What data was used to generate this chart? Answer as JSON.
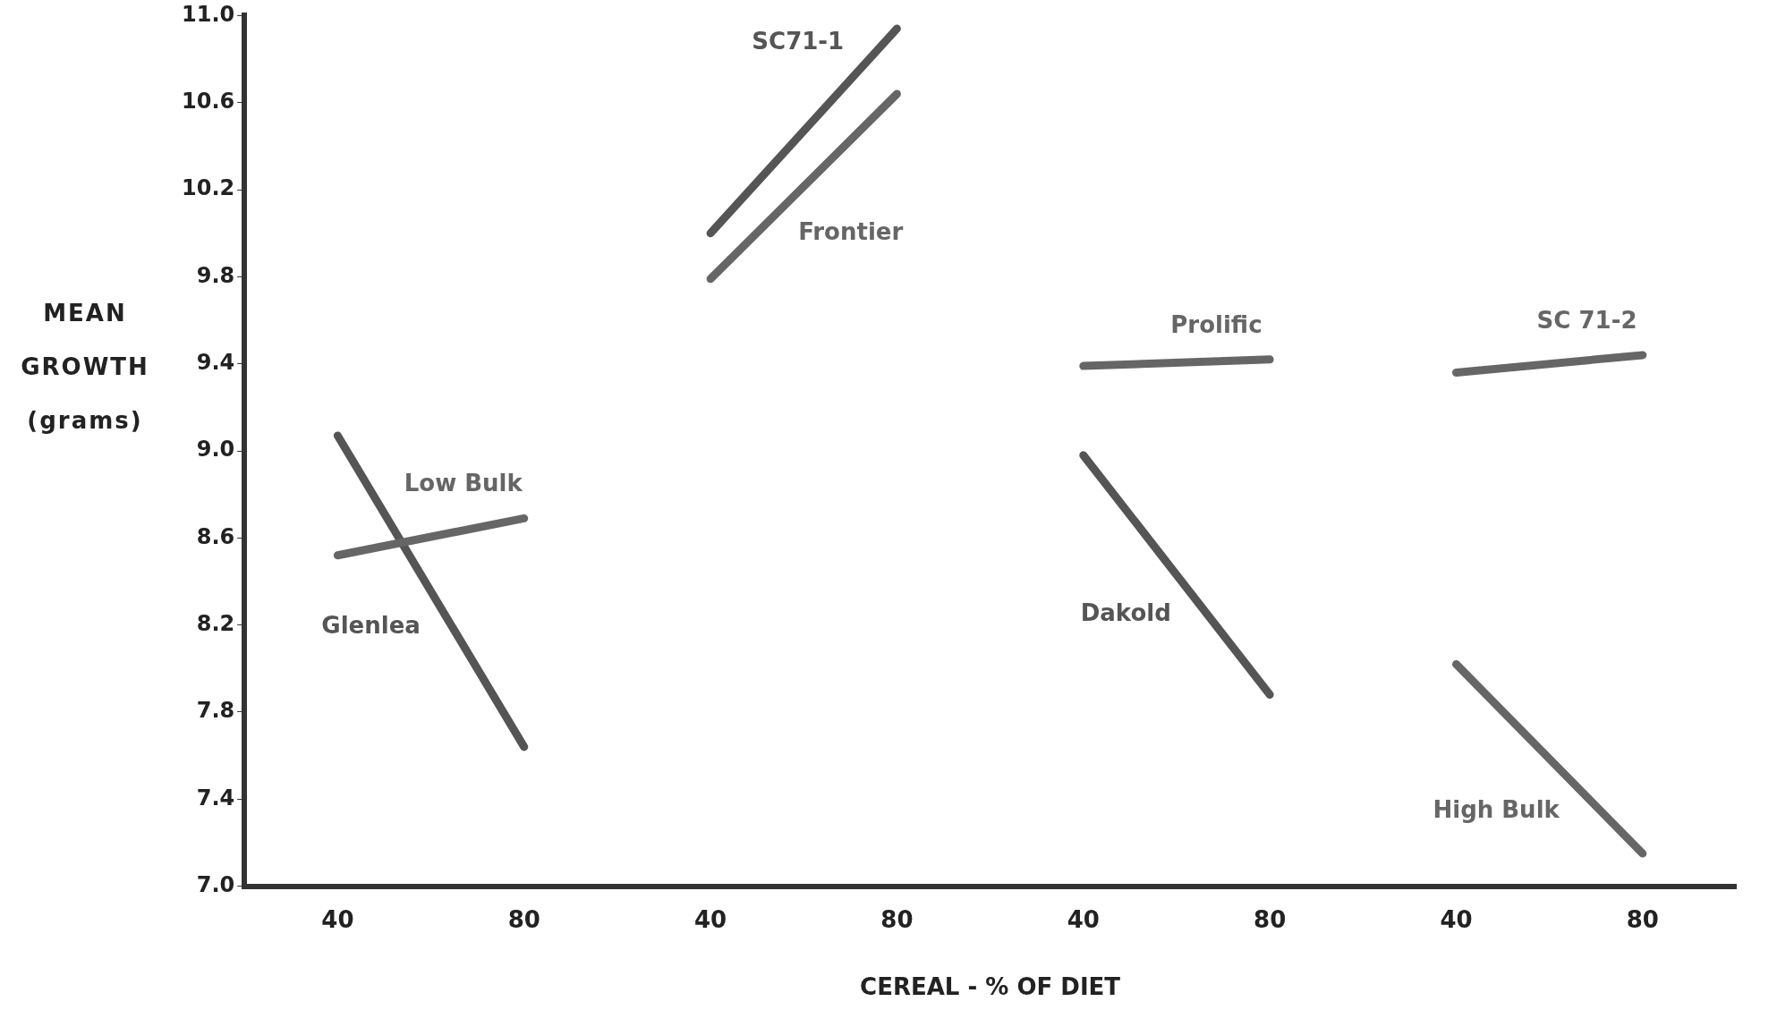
{
  "chart_data": {
    "type": "line",
    "xlabel": "CEREAL - % OF DIET",
    "ylabel": "MEAN GROWTH (grams)",
    "categories": [
      "40",
      "80",
      "40",
      "80",
      "40",
      "80",
      "40",
      "80"
    ],
    "ylim": [
      7.0,
      11.0
    ],
    "yticks": [
      {
        "value": 7.0,
        "label": "7.0"
      },
      {
        "value": 7.4,
        "label": "7.4"
      },
      {
        "value": 7.8,
        "label": "7.8"
      },
      {
        "value": 8.2,
        "label": "8.2"
      },
      {
        "value": 8.6,
        "label": "8.6"
      },
      {
        "value": 9.0,
        "label": "9.0"
      },
      {
        "value": 9.4,
        "label": "9.4"
      },
      {
        "value": 9.8,
        "label": "9.8"
      },
      {
        "value": 10.2,
        "label": "10.2"
      },
      {
        "value": 10.6,
        "label": "10.6"
      },
      {
        "value": 11.0,
        "label": "11.0"
      }
    ],
    "grid": false,
    "legend": false,
    "marker": "none",
    "line_style": "solid",
    "series": [
      {
        "name": "Low Bulk",
        "color": "#666666",
        "values": [
          8.52,
          8.69,
          null,
          null,
          null,
          null,
          null,
          null
        ]
      },
      {
        "name": "Glenlea",
        "color": "#555555",
        "values": [
          9.07,
          7.64,
          null,
          null,
          null,
          null,
          null,
          null
        ]
      },
      {
        "name": "SC71-1",
        "color": "#555555",
        "values": [
          null,
          null,
          10.0,
          10.94,
          null,
          null,
          null,
          null
        ]
      },
      {
        "name": "Frontier",
        "color": "#666666",
        "values": [
          null,
          null,
          9.79,
          10.64,
          null,
          null,
          null,
          null
        ]
      },
      {
        "name": "Prolific",
        "color": "#666666",
        "values": [
          null,
          null,
          null,
          null,
          9.39,
          9.42,
          null,
          null
        ]
      },
      {
        "name": "Dakold",
        "color": "#555555",
        "values": [
          null,
          null,
          null,
          null,
          8.98,
          7.88,
          null,
          null
        ]
      },
      {
        "name": "SC 71-2",
        "color": "#666666",
        "values": [
          null,
          null,
          null,
          null,
          null,
          null,
          9.36,
          9.44
        ]
      },
      {
        "name": "High Bulk",
        "color": "#666666",
        "values": [
          null,
          null,
          null,
          null,
          null,
          null,
          8.02,
          7.15
        ]
      }
    ]
  }
}
